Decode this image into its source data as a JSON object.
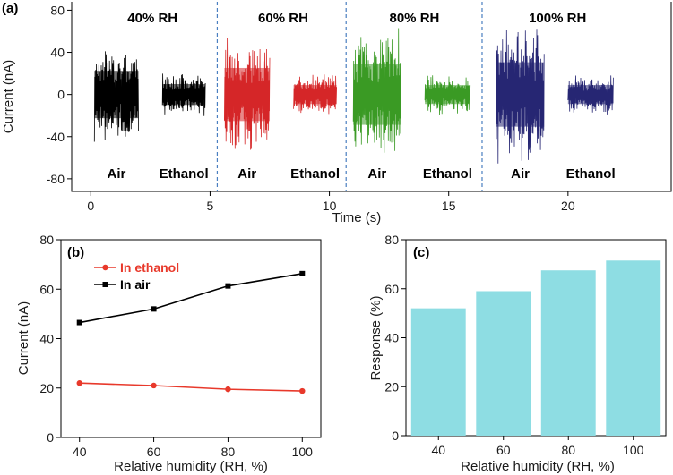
{
  "chart_data": [
    {
      "panel": "(a)",
      "type": "line",
      "xlabel": "Time (s)",
      "ylabel": "Current (nA)",
      "xlim": [
        -0.8,
        24.4
      ],
      "ylim": [
        -92,
        88
      ],
      "xticks": [
        0,
        5,
        10,
        15,
        20
      ],
      "yticks": [
        80,
        40,
        0,
        -40,
        -80
      ],
      "regions": [
        {
          "label": "40% RH",
          "color": "#000000",
          "segments": [
            {
              "label": "Air",
              "t": [
                0.15,
                2.0
              ],
              "amplitude": 50
            },
            {
              "label": "Ethanol",
              "t": [
                3.0,
                4.8
              ],
              "amplitude": 22
            }
          ]
        },
        {
          "label": "60% RH",
          "color": "#d62728",
          "segments": [
            {
              "label": "Air",
              "t": [
                5.6,
                7.5
              ],
              "amplitude": 56
            },
            {
              "label": "Ethanol",
              "t": [
                8.5,
                10.3
              ],
              "amplitude": 20
            }
          ]
        },
        {
          "label": "80% RH",
          "color": "#3a9a24",
          "segments": [
            {
              "label": "Air",
              "t": [
                11.0,
                13.0
              ],
              "amplitude": 64
            },
            {
              "label": "Ethanol",
              "t": [
                14.0,
                15.9
              ],
              "amplitude": 20
            }
          ]
        },
        {
          "label": "100% RH",
          "color": "#262673",
          "segments": [
            {
              "label": "Air",
              "t": [
                17.0,
                19.0
              ],
              "amplitude": 68
            },
            {
              "label": "Ethanol",
              "t": [
                20.0,
                21.9
              ],
              "amplitude": 20
            }
          ]
        }
      ],
      "dividers": [
        5.3,
        10.7,
        16.4
      ]
    },
    {
      "panel": "(b)",
      "type": "line",
      "xlabel": "Relative humidity (RH, %)",
      "ylabel": "Current (nA)",
      "xlim": [
        35,
        105
      ],
      "ylim": [
        0,
        80
      ],
      "xticks": [
        40,
        60,
        80,
        100
      ],
      "yticks": [
        0,
        20,
        40,
        60,
        80
      ],
      "series": [
        {
          "name": "In ethanol",
          "color": "#e8392b",
          "marker": "circle",
          "x": [
            40,
            60,
            80,
            100
          ],
          "y": [
            22,
            21,
            19.5,
            18.8
          ]
        },
        {
          "name": "In air",
          "color": "#000000",
          "marker": "square",
          "x": [
            40,
            60,
            80,
            100
          ],
          "y": [
            46.5,
            52,
            61.3,
            66.3
          ]
        }
      ]
    },
    {
      "panel": "(c)",
      "type": "bar",
      "xlabel": "Relative humidity (RH, %)",
      "ylabel": "Response (%)",
      "ylim": [
        0,
        80
      ],
      "yticks": [
        0,
        20,
        40,
        60,
        80
      ],
      "categories": [
        "40",
        "60",
        "80",
        "100"
      ],
      "values": [
        52,
        59,
        67.5,
        71.5
      ],
      "color": "#8edde3"
    }
  ]
}
